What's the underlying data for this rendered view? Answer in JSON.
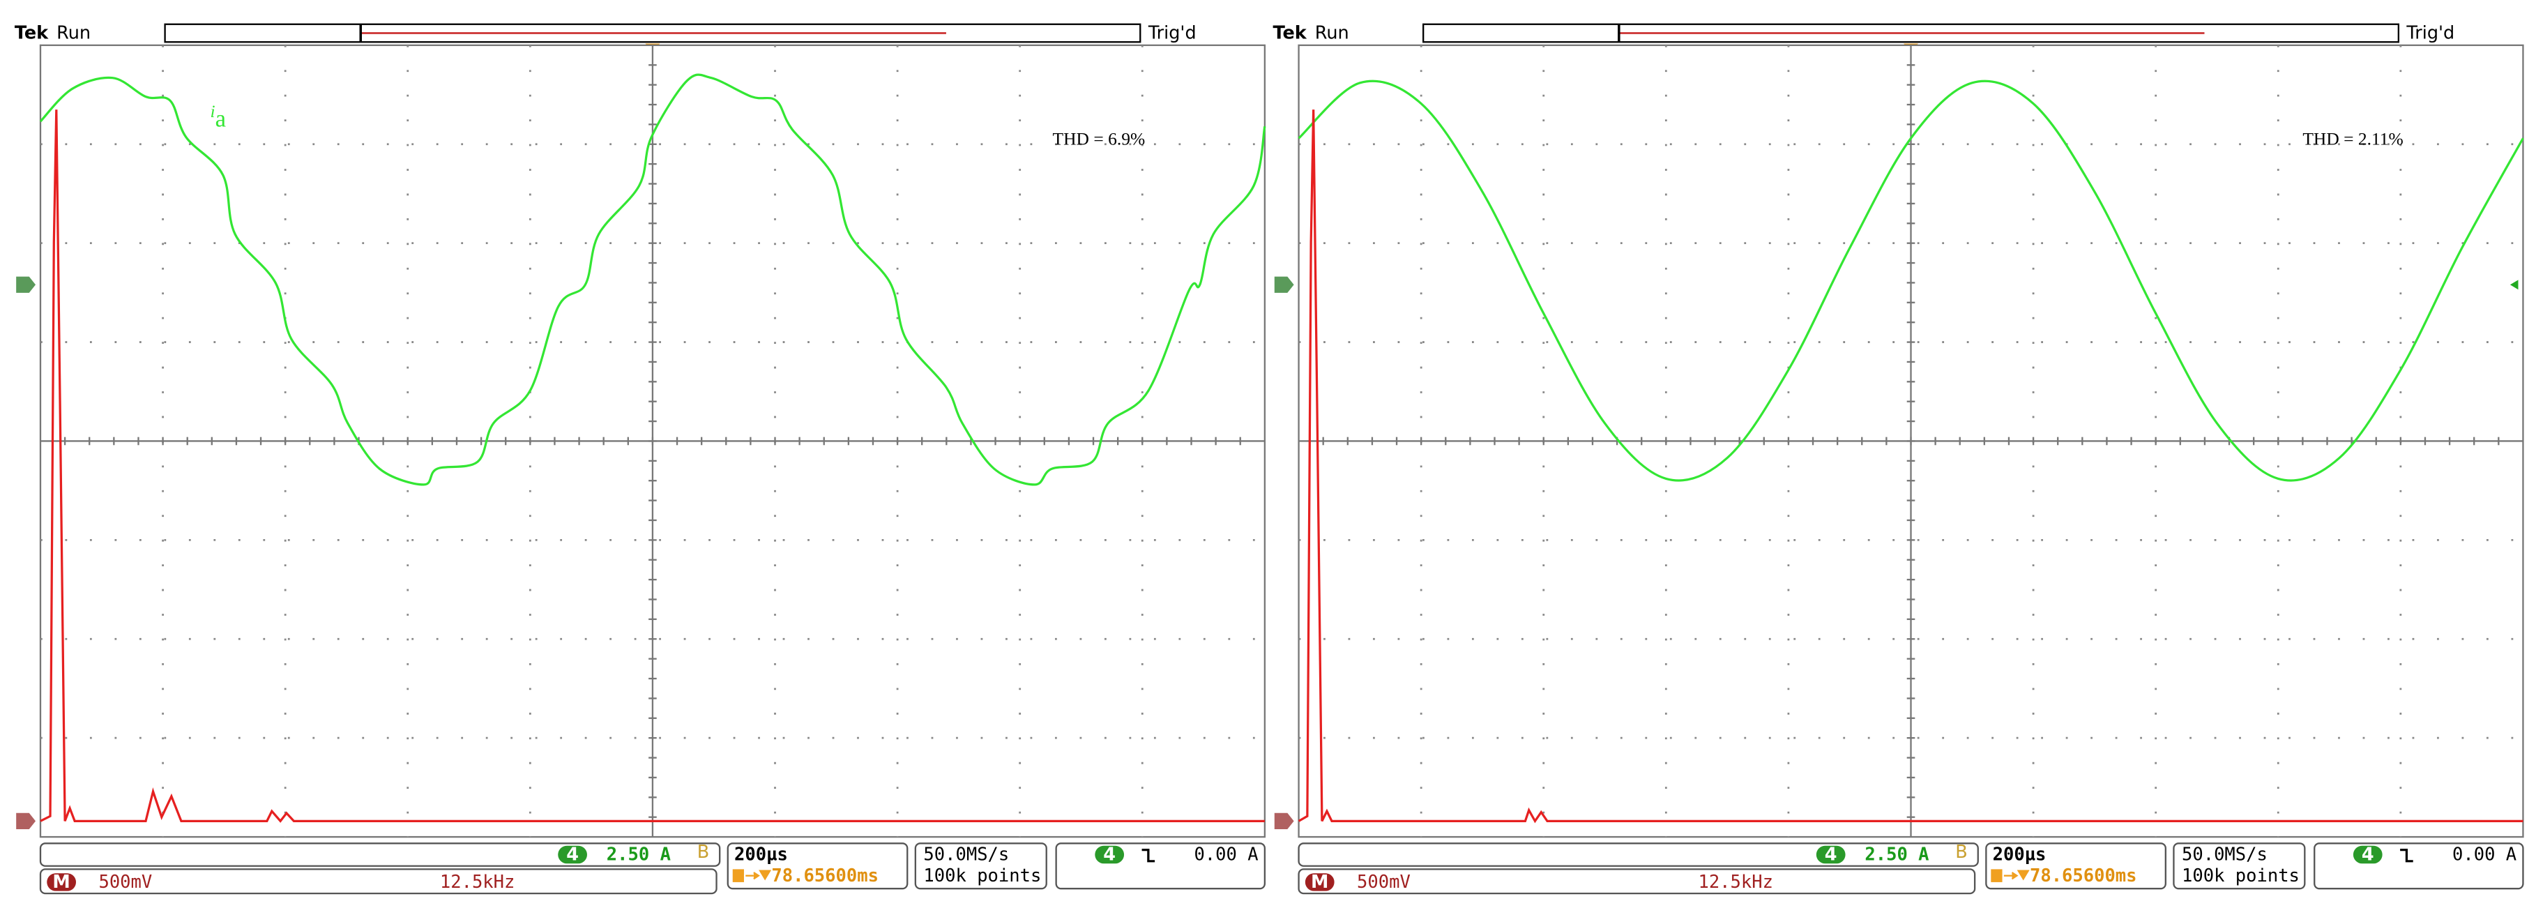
{
  "panels": [
    {
      "header": {
        "brand": "Tek",
        "status": "Run",
        "trigger": "Trig'd"
      },
      "annotation": "THD = 6.9%",
      "trace_label": {
        "main": "i",
        "sub": "a"
      },
      "status_bar": {
        "channel": "4",
        "channel_scale": "2.50 A",
        "timebase": "200µs",
        "trigger_position": "78.65600ms",
        "sample_rate": "50.0MS/s",
        "record_length": "100k points",
        "trigger_source": "4",
        "trigger_level": "0.00 A",
        "math": "M",
        "math_scale": "500mV",
        "math_span": "12.5kHz"
      },
      "traces": [
        {
          "name": "current",
          "color": "#33e633",
          "x": [
            0,
            0.26,
            0.59,
            0.86,
            1.06,
            1.19,
            1.49,
            1.59,
            1.92,
            2.05,
            2.38,
            2.51,
            2.77,
            3.13,
            3.24,
            3.57,
            3.7,
            4.0,
            4.23,
            4.45,
            4.56,
            4.89,
            4.99,
            5.28,
            5.48,
            5.81,
            6.01,
            6.14,
            6.47,
            6.61,
            6.94,
            7.07,
            7.4,
            7.53,
            7.79,
            8.12,
            8.26,
            8.59,
            8.72,
            9.05,
            9.38,
            9.47,
            9.58,
            9.91,
            10
          ],
          "y": [
            3.23,
            3.56,
            3.67,
            3.48,
            3.44,
            3.07,
            2.69,
            2.09,
            1.6,
            1.03,
            0.57,
            0.18,
            -0.28,
            -0.44,
            -0.28,
            -0.21,
            0.18,
            0.51,
            1.36,
            1.58,
            2.09,
            2.58,
            3.07,
            3.64,
            3.67,
            3.48,
            3.44,
            3.15,
            2.69,
            2.09,
            1.6,
            1.03,
            0.54,
            0.18,
            -0.28,
            -0.44,
            -0.28,
            -0.21,
            0.18,
            0.51,
            1.52,
            1.58,
            2.09,
            2.58,
            3.18
          ]
        },
        {
          "name": "spectrum",
          "color": "#e62020",
          "x": [
            0,
            0.08,
            0.11,
            0.13,
            0.16,
            0.2,
            0.24,
            0.28,
            0.86,
            0.92,
            0.99,
            1.07,
            1.15,
            1.85,
            1.89,
            1.96,
            2.01,
            2.07,
            10
          ],
          "y": [
            -3.84,
            -3.79,
            2.01,
            3.35,
            0.38,
            -3.84,
            -3.71,
            -3.84,
            -3.84,
            -3.54,
            -3.8,
            -3.59,
            -3.84,
            -3.84,
            -3.74,
            -3.84,
            -3.76,
            -3.84,
            -3.84
          ]
        }
      ]
    },
    {
      "header": {
        "brand": "Tek",
        "status": "Run",
        "trigger": "Trig'd"
      },
      "annotation": "THD = 2.11%",
      "status_bar": {
        "channel": "4",
        "channel_scale": "2.50 A",
        "timebase": "200µs",
        "trigger_position": "78.65600ms",
        "sample_rate": "50.0MS/s",
        "record_length": "100k points",
        "trigger_source": "4",
        "trigger_level": "0.00 A",
        "math": "M",
        "math_scale": "500mV",
        "math_span": "12.5kHz"
      },
      "traces": [
        {
          "name": "current",
          "color": "#33e633",
          "x": [
            0,
            0.5,
            1,
            1.5,
            2,
            2.5,
            3,
            3.5,
            4,
            4.5,
            5,
            5.5,
            6,
            6.5,
            7,
            7.5,
            8,
            8.5,
            9,
            9.5,
            10
          ],
          "y": [
            3.06,
            3.62,
            3.41,
            2.52,
            1.29,
            0.18,
            -0.38,
            -0.17,
            0.72,
            1.95,
            3.06,
            3.62,
            3.41,
            2.52,
            1.29,
            0.18,
            -0.38,
            -0.17,
            0.72,
            1.95,
            3.06
          ]
        },
        {
          "name": "spectrum",
          "color": "#e62020",
          "x": [
            0,
            0.07,
            0.1,
            0.12,
            0.15,
            0.19,
            0.23,
            0.27,
            1.85,
            1.88,
            1.93,
            1.98,
            2.03,
            10
          ],
          "y": [
            -3.84,
            -3.79,
            2.01,
            3.35,
            0.38,
            -3.84,
            -3.74,
            -3.84,
            -3.84,
            -3.73,
            -3.84,
            -3.75,
            -3.84,
            -3.84
          ]
        }
      ]
    }
  ]
}
